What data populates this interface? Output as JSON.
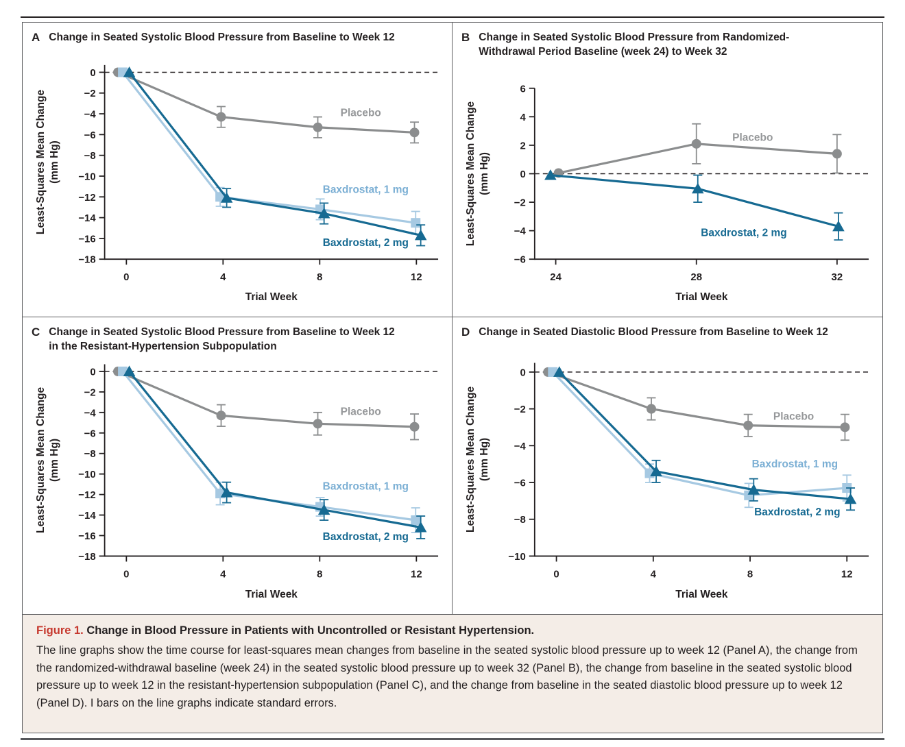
{
  "figure": {
    "caption_label": "Figure 1.",
    "caption_title": "Change in Blood Pressure in Patients with Uncontrolled or Resistant Hypertension.",
    "caption_body": "The line graphs show the time course for least-squares mean changes from baseline in the seated systolic blood pressure up to week 12 (Panel A), the change from the randomized-withdrawal baseline (week 24) in the seated systolic blood pressure up to week 32 (Panel B), the change from baseline in the seated systolic blood pressure up to week 12 in the resistant-hypertension subpopulation (Panel C), and the change from baseline in the seated diastolic blood pressure up to week 12 (Panel D). I bars on the line graphs indicate standard errors.",
    "colors": {
      "axis": "#231f20",
      "placebo": "#8b8d8e",
      "placebo_label": "#96989a",
      "baxdrostat_1mg": "#a6c9e2",
      "baxdrostat_1mg_label": "#7bafd4",
      "baxdrostat_2mg": "#166a92",
      "accent_red": "#c6382e",
      "caption_bg": "#f4ede7"
    }
  },
  "chart_data": [
    {
      "panel_letter": "A",
      "type": "line",
      "title_line1": "Change in Seated Systolic Blood Pressure from Baseline to Week 12",
      "title_line2": "",
      "xlabel": "Trial Week",
      "ylabel_lines": [
        "Least-Squares Mean Change",
        "(mm Hg)"
      ],
      "x_ticks": [
        0,
        4,
        8,
        12
      ],
      "y_ticks": [
        0,
        -2,
        -4,
        -6,
        -8,
        -10,
        -12,
        -14,
        -16,
        -18
      ],
      "xlim": [
        -0.9,
        12.9
      ],
      "ylim": [
        -18,
        0.7
      ],
      "zero_dashed_line": true,
      "series": [
        {
          "name": "Placebo",
          "marker": "circle",
          "color": "#8b8d8e",
          "label_color": "#96989a",
          "x": [
            -0.35,
            3.92,
            7.92,
            11.92
          ],
          "y": [
            0,
            -4.3,
            -5.3,
            -5.8
          ],
          "se": [
            0,
            1.0,
            1.0,
            1.0
          ],
          "label": {
            "text": "Placebo",
            "x": 9.7,
            "y": -3.9
          }
        },
        {
          "name": "Baxdrostat, 1 mg",
          "marker": "square",
          "color": "#a6c9e2",
          "label_color": "#7bafd4",
          "x": [
            -0.15,
            3.88,
            8.02,
            11.97
          ],
          "y": [
            0,
            -12.0,
            -13.2,
            -14.5
          ],
          "se": [
            0,
            0.9,
            1.0,
            1.1
          ],
          "label": {
            "text": "Baxdrostat, 1 mg",
            "x": 9.9,
            "y": -11.3
          }
        },
        {
          "name": "Baxdrostat, 2 mg",
          "marker": "triangle",
          "color": "#166a92",
          "label_color": "#166a92",
          "x": [
            0.12,
            4.15,
            8.18,
            12.18
          ],
          "y": [
            0,
            -12.1,
            -13.6,
            -15.7
          ],
          "se": [
            0,
            0.9,
            1.0,
            1.0
          ],
          "label": {
            "text": "Baxdrostat, 2 mg",
            "x": 9.9,
            "y": -16.4
          }
        }
      ]
    },
    {
      "panel_letter": "B",
      "type": "line",
      "title_line1": "Change in Seated Systolic Blood Pressure from Randomized-",
      "title_line2": "Withdrawal Period Baseline (week 24) to Week 32",
      "xlabel": "Trial Week",
      "ylabel_lines": [
        "Least-Squares Mean Change",
        "(mm Hg)"
      ],
      "x_ticks": [
        24,
        28,
        32
      ],
      "y_ticks": [
        6,
        4,
        2,
        0,
        -2,
        -4,
        -6
      ],
      "xlim": [
        23.4,
        32.9
      ],
      "ylim": [
        -6,
        6
      ],
      "zero_dashed_line": true,
      "series": [
        {
          "name": "Placebo",
          "marker": "circle",
          "color": "#8b8d8e",
          "label_color": "#96989a",
          "x": [
            24.08,
            28.0,
            32.0
          ],
          "y": [
            0.05,
            2.1,
            1.4
          ],
          "se": [
            0,
            1.4,
            1.35
          ],
          "label": {
            "text": "Placebo",
            "x": 29.6,
            "y": 2.55
          }
        },
        {
          "name": "Baxdrostat, 2 mg",
          "marker": "triangle",
          "color": "#166a92",
          "label_color": "#166a92",
          "x": [
            23.85,
            28.04,
            32.04
          ],
          "y": [
            -0.1,
            -1.05,
            -3.7
          ],
          "se": [
            0,
            0.95,
            0.95
          ],
          "label": {
            "text": "Baxdrostat, 2 mg",
            "x": 29.35,
            "y": -4.15
          }
        }
      ]
    },
    {
      "panel_letter": "C",
      "type": "line",
      "title_line1": "Change in Seated Systolic Blood Pressure from Baseline to Week 12",
      "title_line2": "in the Resistant-Hypertension Subpopulation",
      "xlabel": "Trial Week",
      "ylabel_lines": [
        "Least-Squares Mean Change",
        "(mm Hg)"
      ],
      "x_ticks": [
        0,
        4,
        8,
        12
      ],
      "y_ticks": [
        0,
        -2,
        -4,
        -6,
        -8,
        -10,
        -12,
        -14,
        -16,
        -18
      ],
      "xlim": [
        -0.9,
        12.9
      ],
      "ylim": [
        -18,
        0.7
      ],
      "zero_dashed_line": true,
      "series": [
        {
          "name": "Placebo",
          "marker": "circle",
          "color": "#8b8d8e",
          "label_color": "#96989a",
          "x": [
            -0.35,
            3.92,
            7.92,
            11.92
          ],
          "y": [
            0,
            -4.3,
            -5.1,
            -5.4
          ],
          "se": [
            0,
            1.05,
            1.1,
            1.25
          ],
          "label": {
            "text": "Placebo",
            "x": 9.7,
            "y": -3.9
          }
        },
        {
          "name": "Baxdrostat, 1 mg",
          "marker": "square",
          "color": "#a6c9e2",
          "label_color": "#7bafd4",
          "x": [
            -0.15,
            3.88,
            8.02,
            11.97
          ],
          "y": [
            0,
            -11.9,
            -13.2,
            -14.5
          ],
          "se": [
            0,
            1.1,
            0.9,
            1.2
          ],
          "label": {
            "text": "Baxdrostat, 1 mg",
            "x": 9.9,
            "y": -11.2
          }
        },
        {
          "name": "Baxdrostat, 2 mg",
          "marker": "triangle",
          "color": "#166a92",
          "label_color": "#166a92",
          "x": [
            0.12,
            4.15,
            8.18,
            12.18
          ],
          "y": [
            0,
            -11.8,
            -13.5,
            -15.2
          ],
          "se": [
            0,
            1.0,
            1.0,
            1.1
          ],
          "label": {
            "text": "Baxdrostat, 2 mg",
            "x": 9.9,
            "y": -16.1
          }
        }
      ]
    },
    {
      "panel_letter": "D",
      "type": "line",
      "title_line1": "Change in Seated Diastolic Blood Pressure from Baseline to Week 12",
      "title_line2": "",
      "xlabel": "Trial Week",
      "ylabel_lines": [
        "Least-Squares Mean Change",
        "(mm Hg)"
      ],
      "x_ticks": [
        0,
        4,
        8,
        12
      ],
      "y_ticks": [
        0,
        -2,
        -4,
        -6,
        -8,
        -10
      ],
      "xlim": [
        -0.9,
        12.9
      ],
      "ylim": [
        -10,
        0.5
      ],
      "zero_dashed_line": true,
      "series": [
        {
          "name": "Placebo",
          "marker": "circle",
          "color": "#8b8d8e",
          "label_color": "#96989a",
          "x": [
            -0.35,
            3.92,
            7.92,
            11.92
          ],
          "y": [
            0,
            -2.0,
            -2.9,
            -3.0
          ],
          "se": [
            0,
            0.6,
            0.6,
            0.7
          ],
          "label": {
            "text": "Placebo",
            "x": 9.8,
            "y": -2.4
          }
        },
        {
          "name": "Baxdrostat, 1 mg",
          "marker": "square",
          "color": "#a6c9e2",
          "label_color": "#7bafd4",
          "x": [
            -0.15,
            3.85,
            7.95,
            12.0
          ],
          "y": [
            0,
            -5.5,
            -6.7,
            -6.3
          ],
          "se": [
            0,
            0.5,
            0.65,
            0.7
          ],
          "label": {
            "text": "Baxdrostat, 1 mg",
            "x": 9.85,
            "y": -5.0
          }
        },
        {
          "name": "Baxdrostat, 2 mg",
          "marker": "triangle",
          "color": "#166a92",
          "label_color": "#166a92",
          "x": [
            0.12,
            4.12,
            8.15,
            12.15
          ],
          "y": [
            0,
            -5.4,
            -6.4,
            -6.9
          ],
          "se": [
            0,
            0.6,
            0.6,
            0.6
          ],
          "label": {
            "text": "Baxdrostat, 2 mg",
            "x": 9.95,
            "y": -7.6
          }
        }
      ]
    }
  ]
}
